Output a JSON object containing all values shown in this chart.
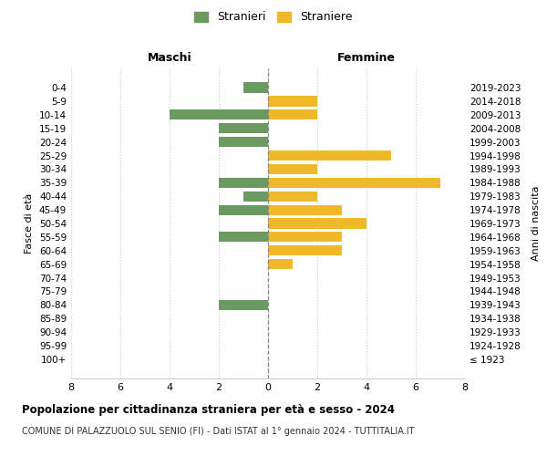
{
  "age_groups": [
    "100+",
    "95-99",
    "90-94",
    "85-89",
    "80-84",
    "75-79",
    "70-74",
    "65-69",
    "60-64",
    "55-59",
    "50-54",
    "45-49",
    "40-44",
    "35-39",
    "30-34",
    "25-29",
    "20-24",
    "15-19",
    "10-14",
    "5-9",
    "0-4"
  ],
  "birth_years": [
    "≤ 1923",
    "1924-1928",
    "1929-1933",
    "1934-1938",
    "1939-1943",
    "1944-1948",
    "1949-1953",
    "1954-1958",
    "1959-1963",
    "1964-1968",
    "1969-1973",
    "1974-1978",
    "1979-1983",
    "1984-1988",
    "1989-1993",
    "1994-1998",
    "1999-2003",
    "2004-2008",
    "2009-2013",
    "2014-2018",
    "2019-2023"
  ],
  "males": [
    0,
    0,
    0,
    0,
    2,
    0,
    0,
    0,
    0,
    2,
    0,
    2,
    1,
    2,
    0,
    0,
    2,
    2,
    4,
    0,
    1
  ],
  "females": [
    0,
    0,
    0,
    0,
    0,
    0,
    0,
    1,
    3,
    3,
    4,
    3,
    2,
    7,
    2,
    5,
    0,
    0,
    2,
    2,
    0
  ],
  "male_color": "#6a9a5f",
  "female_color": "#f0b92a",
  "male_label": "Stranieri",
  "female_label": "Straniere",
  "title": "Popolazione per cittadinanza straniera per età e sesso - 2024",
  "subtitle": "COMUNE DI PALAZZUOLO SUL SENIO (FI) - Dati ISTAT al 1° gennaio 2024 - TUTTITALIA.IT",
  "xlabel_left": "Maschi",
  "xlabel_right": "Femmine",
  "ylabel_left": "Fasce di età",
  "ylabel_right": "Anni di nascita",
  "xlim": 8,
  "background_color": "#ffffff",
  "grid_color": "#cccccc"
}
